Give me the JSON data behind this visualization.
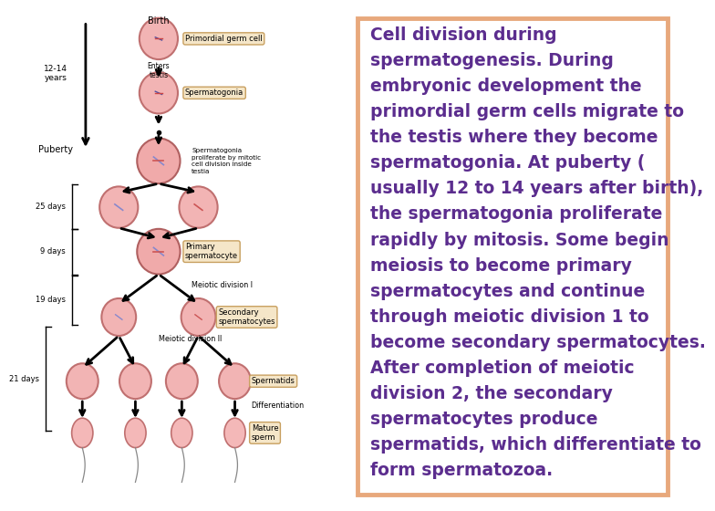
{
  "text_color": "#5b2d8e",
  "text_bg_color": "#ffffff",
  "border_color": "#e8a87c",
  "left_bg_color": "#ffffff",
  "right_lines": [
    "Cell division during",
    "spermatogenesis. During",
    "embryonic development the",
    "primordial germ cells migrate to",
    "the testis where they become",
    "spermatogonia. At puberty (",
    "usually 12 to 14 years after birth),",
    "the spermatogonia proliferate",
    "rapidly by mitosis. Some begin",
    "meiosis to become primary",
    "spermatocytes and continue",
    "through meiotic division 1 to",
    "become secondary spermatocytes.",
    "After completion of meiotic",
    "division 2, the secondary",
    "spermatocytes produce",
    "spermatids, which differentiate to",
    "form spermatozoa."
  ],
  "font_size": 13.5,
  "cell_fill": "#f4b8b8",
  "cell_outline": "#c07070",
  "label_box_color": "#f5e6c8",
  "label_box_edge": "#c8a060",
  "border_lw": 3.5
}
